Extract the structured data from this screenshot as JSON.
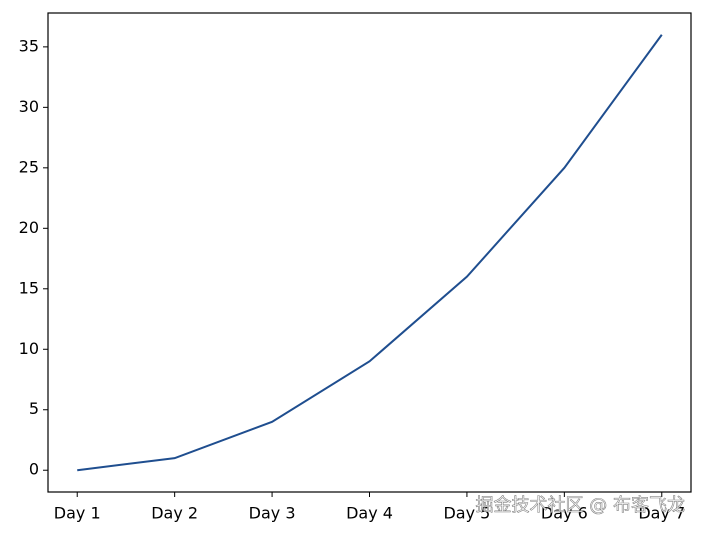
{
  "chart_data": {
    "type": "line",
    "categories": [
      "Day 1",
      "Day 2",
      "Day 3",
      "Day 4",
      "Day 5",
      "Day 6",
      "Day 7"
    ],
    "series": [
      {
        "color": "#1f4e8f",
        "values": [
          0,
          1,
          4,
          9,
          16,
          25,
          36
        ]
      }
    ],
    "ylim": [
      -1.8,
      37.8
    ],
    "yticks": [
      0,
      5,
      10,
      15,
      20,
      25,
      30,
      35
    ],
    "grid": false,
    "watermark": "掘金技术社区 @ 布客飞龙"
  }
}
